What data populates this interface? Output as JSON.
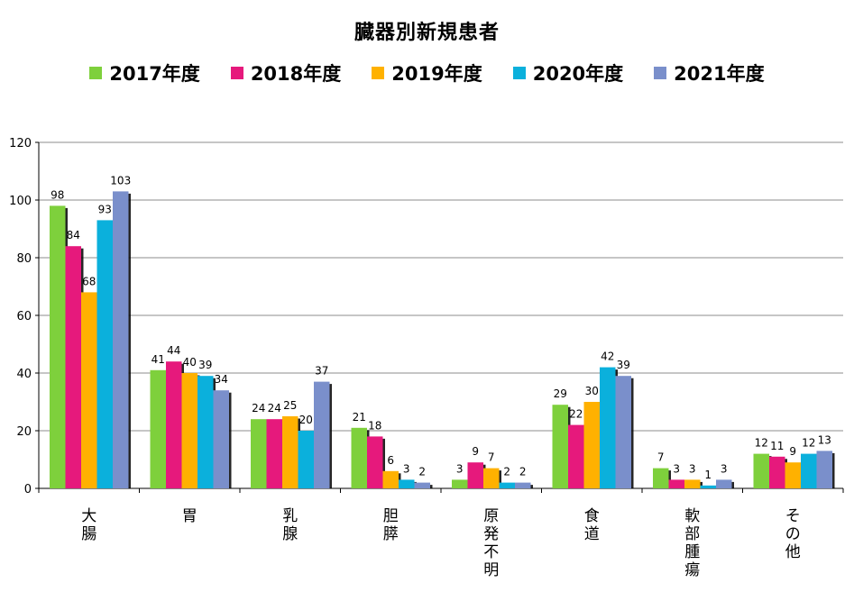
{
  "chart_data": {
    "type": "bar",
    "title": "臓器別新規患者",
    "xlabel": "",
    "ylabel": "",
    "ylim": [
      0,
      120
    ],
    "yticks": [
      0,
      20,
      40,
      60,
      80,
      100,
      120
    ],
    "grid": true,
    "legend_position": "top",
    "categories": [
      "大腸",
      "胃",
      "乳腺",
      "胆膵",
      "原発不明",
      "食道",
      "軟部腫瘍",
      "その他"
    ],
    "series": [
      {
        "name": "2017年度",
        "color": "#7ED03C",
        "values": [
          98,
          41,
          24,
          21,
          3,
          29,
          7,
          12
        ]
      },
      {
        "name": "2018年度",
        "color": "#E6197C",
        "values": [
          84,
          44,
          24,
          18,
          9,
          22,
          3,
          11
        ]
      },
      {
        "name": "2019年度",
        "color": "#FFB100",
        "values": [
          68,
          40,
          25,
          6,
          7,
          30,
          3,
          9
        ]
      },
      {
        "name": "2020年度",
        "color": "#0BB0DC",
        "values": [
          93,
          39,
          20,
          3,
          2,
          42,
          1,
          12
        ]
      },
      {
        "name": "2021年度",
        "color": "#7A8FCB",
        "values": [
          103,
          34,
          37,
          2,
          2,
          39,
          3,
          13
        ]
      }
    ]
  }
}
